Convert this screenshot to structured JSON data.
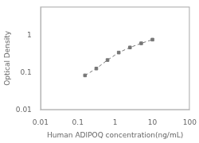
{
  "chart_data": {
    "type": "line",
    "xlabel": "Human ADIPOQ concentration(ng/mL)",
    "ylabel": "Optical Density",
    "x": [
      0.156,
      0.313,
      0.625,
      1.25,
      2.5,
      5.0,
      10.0
    ],
    "values": [
      0.085,
      0.13,
      0.22,
      0.35,
      0.48,
      0.62,
      0.78
    ],
    "color": "#777777",
    "marker": "square",
    "line_style": "dashed",
    "log": true,
    "grid": false,
    "xlim": [
      0.01,
      100
    ],
    "ylim": [
      0.01,
      6
    ],
    "xticks": [
      0.01,
      0.1,
      1,
      10,
      100
    ],
    "yticks": [
      0.01,
      0.1,
      1
    ]
  }
}
